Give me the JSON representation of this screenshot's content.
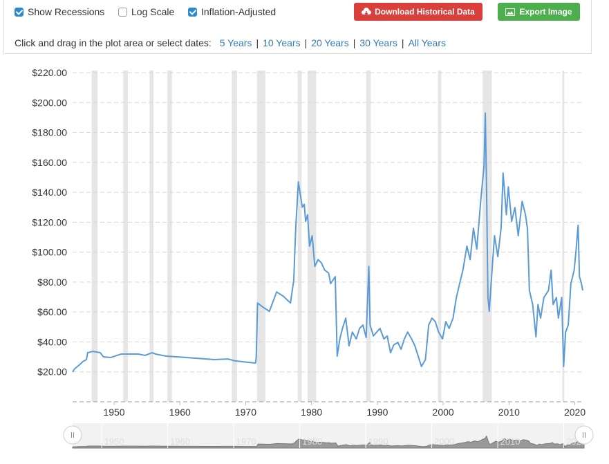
{
  "controls": {
    "checkboxes": [
      {
        "label": "Show Recessions",
        "checked": true
      },
      {
        "label": "Log Scale",
        "checked": false
      },
      {
        "label": "Inflation-Adjusted",
        "checked": true
      }
    ],
    "buttons": [
      {
        "label": "Download Historical Data",
        "color": "#d9403c"
      },
      {
        "label": "Export Image",
        "color": "#4cae4c"
      }
    ],
    "zoom_prompt": "Click and drag in the plot area or select dates:",
    "zoom_links": [
      "5 Years",
      "10 Years",
      "20 Years",
      "30 Years",
      "All Years"
    ]
  },
  "chart_data": {
    "type": "line",
    "color": "#5b9bd5",
    "recession_color": "#e6e6e6",
    "grid": true,
    "xlim": [
      1943.7,
      2021.2
    ],
    "xticks": [
      1950,
      1960,
      1970,
      1980,
      1990,
      2000,
      2010,
      2020
    ],
    "ylim": [
      0,
      220
    ],
    "yticks": [
      {
        "value": 20,
        "label": "$20.00"
      },
      {
        "value": 40,
        "label": "$40.00"
      },
      {
        "value": 60,
        "label": "$60.00"
      },
      {
        "value": 80,
        "label": "$80.00"
      },
      {
        "value": 100,
        "label": "$100.00"
      },
      {
        "value": 120,
        "label": "$120.00"
      },
      {
        "value": 140,
        "label": "$140.00"
      },
      {
        "value": 160,
        "label": "$160.00"
      },
      {
        "value": 180,
        "label": "$180.00"
      },
      {
        "value": 200,
        "label": "$200.00"
      },
      {
        "value": 220,
        "label": "$220.00"
      }
    ],
    "recessions": [
      {
        "start": 1946.6,
        "end": 1947.5
      },
      {
        "start": 1951.4,
        "end": 1952.1
      },
      {
        "start": 1955.4,
        "end": 1956.0
      },
      {
        "start": 1958.1,
        "end": 1958.8
      },
      {
        "start": 1967.9,
        "end": 1968.7
      },
      {
        "start": 1971.7,
        "end": 1973.0
      },
      {
        "start": 1977.9,
        "end": 1978.5
      },
      {
        "start": 1979.4,
        "end": 1980.7
      },
      {
        "start": 1988.3,
        "end": 1989.0
      },
      {
        "start": 1999.2,
        "end": 1999.7
      },
      {
        "start": 2006.0,
        "end": 2007.4
      },
      {
        "start": 2018.1,
        "end": 2018.4
      }
    ],
    "x": [
      1943.7,
      1944.0,
      1944.7,
      1945.3,
      1945.8,
      1946.0,
      1946.8,
      1947.9,
      1948.4,
      1949.5,
      1951.1,
      1953.7,
      1954.7,
      1955.8,
      1956.3,
      1957.9,
      1961.0,
      1965.2,
      1967.3,
      1968.4,
      1970.5,
      1971.5,
      1971.6,
      1971.8,
      1972.6,
      1973.6,
      1974.7,
      1975.7,
      1976.8,
      1977.3,
      1977.6,
      1978.0,
      1978.6,
      1978.9,
      1979.1,
      1979.4,
      1979.7,
      1980.1,
      1980.5,
      1981.0,
      1981.5,
      1982.0,
      1982.6,
      1982.9,
      1983.6,
      1983.9,
      1984.3,
      1984.7,
      1985.2,
      1985.7,
      1986.2,
      1986.8,
      1987.3,
      1987.8,
      1988.3,
      1988.7,
      1988.9,
      1989.4,
      1989.9,
      1990.4,
      1991.0,
      1991.5,
      1992.0,
      1992.5,
      1993.1,
      1993.6,
      1994.1,
      1994.6,
      1995.2,
      1995.7,
      1996.2,
      1996.7,
      1997.3,
      1997.8,
      1998.3,
      1998.8,
      1999.3,
      1999.9,
      2000.4,
      2000.9,
      2001.5,
      2002.0,
      2002.5,
      2003.0,
      2003.6,
      2004.1,
      2004.6,
      2005.1,
      2005.7,
      2006.2,
      2006.4,
      2006.6,
      2006.8,
      2007.0,
      2007.5,
      2007.8,
      2008.3,
      2008.8,
      2009.1,
      2009.6,
      2009.9,
      2010.4,
      2010.9,
      2011.4,
      2012.0,
      2012.5,
      2012.8,
      2013.1,
      2013.6,
      2014.1,
      2014.4,
      2014.8,
      2015.3,
      2016.0,
      2016.4,
      2016.7,
      2017.2,
      2017.5,
      2018.0,
      2018.3,
      2018.6,
      2019.0,
      2019.4,
      2019.9,
      2020.2,
      2020.5,
      2020.7,
      2021.0,
      2021.2
    ],
    "values": [
      19.9,
      22.0,
      24.5,
      27.0,
      28.2,
      32.8,
      33.7,
      32.8,
      30.0,
      29.6,
      31.9,
      31.9,
      31.0,
      32.8,
      31.9,
      30.5,
      29.6,
      28.2,
      28.6,
      27.3,
      26.3,
      25.9,
      29.6,
      66.0,
      63.3,
      60.5,
      73.4,
      70.6,
      66.0,
      81.3,
      116.0,
      147.0,
      130.0,
      132.0,
      120.6,
      125.0,
      104.0,
      111.0,
      90.5,
      95.0,
      92.8,
      88.0,
      86.0,
      79.0,
      83.6,
      30.5,
      42.0,
      49.0,
      55.9,
      37.4,
      46.6,
      42.0,
      49.0,
      51.3,
      43.0,
      90.5,
      51.3,
      44.0,
      46.6,
      49.0,
      42.0,
      44.0,
      32.8,
      38.0,
      39.7,
      35.1,
      42.0,
      46.6,
      42.0,
      37.4,
      30.5,
      23.6,
      28.2,
      51.3,
      55.9,
      53.6,
      46.6,
      42.0,
      53.6,
      49.0,
      55.9,
      69.7,
      79.0,
      88.0,
      104.0,
      95.0,
      116.0,
      102.0,
      134.0,
      157.5,
      193.0,
      139.0,
      69.7,
      60.5,
      92.8,
      111.0,
      97.0,
      116.0,
      152.9,
      125.0,
      143.6,
      120.6,
      129.8,
      111.0,
      134.0,
      125.0,
      116.0,
      74.4,
      65.0,
      43.4,
      65.0,
      55.9,
      69.7,
      74.4,
      88.0,
      65.0,
      69.7,
      55.9,
      69.7,
      23.6,
      46.6,
      51.3,
      79.0,
      88.0,
      102.0,
      118.0,
      83.6,
      79.0,
      74.4
    ]
  }
}
